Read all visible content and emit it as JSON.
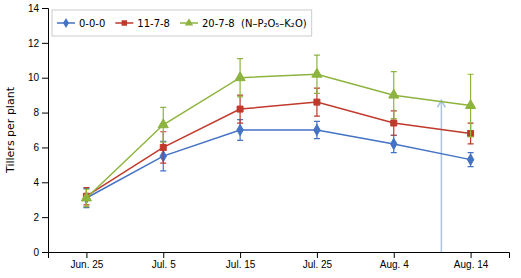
{
  "chart_data": {
    "type": "line",
    "categories": [
      "Jun. 25",
      "Jul. 5",
      "Jul. 15",
      "Jul. 25",
      "Aug. 4",
      "Aug. 14"
    ],
    "series": [
      {
        "name": "0-0-0",
        "color": "#4472c4",
        "marker": "diamond",
        "values": [
          3.1,
          5.5,
          7.0,
          7.0,
          6.2,
          5.3
        ],
        "errors": [
          0.55,
          0.85,
          0.6,
          0.5,
          0.5,
          0.4
        ]
      },
      {
        "name": "11-7-8",
        "color": "#c0392b",
        "marker": "square",
        "values": [
          3.2,
          6.0,
          8.2,
          8.6,
          7.4,
          6.8
        ],
        "errors": [
          0.5,
          0.9,
          0.8,
          0.8,
          0.7,
          0.6
        ]
      },
      {
        "name": "20-7-8  (N–P₂O₅–K₂O)",
        "color": "#8db43e",
        "marker": "triangle",
        "values": [
          3.1,
          7.3,
          10.0,
          10.2,
          9.0,
          8.4
        ],
        "errors": [
          0.5,
          1.0,
          1.1,
          1.1,
          1.35,
          1.8
        ]
      }
    ],
    "y_label": "Tillers per plant",
    "ylim": [
      0,
      14
    ],
    "yticks": [
      0,
      2,
      4,
      6,
      8,
      10,
      12,
      14
    ],
    "annotations": [
      {
        "type": "arrow",
        "x": 4.62,
        "y_start": 0.0,
        "y_tip": 8.7,
        "color": "#aac4e0"
      }
    ],
    "grid": false,
    "legend": "upper left"
  }
}
